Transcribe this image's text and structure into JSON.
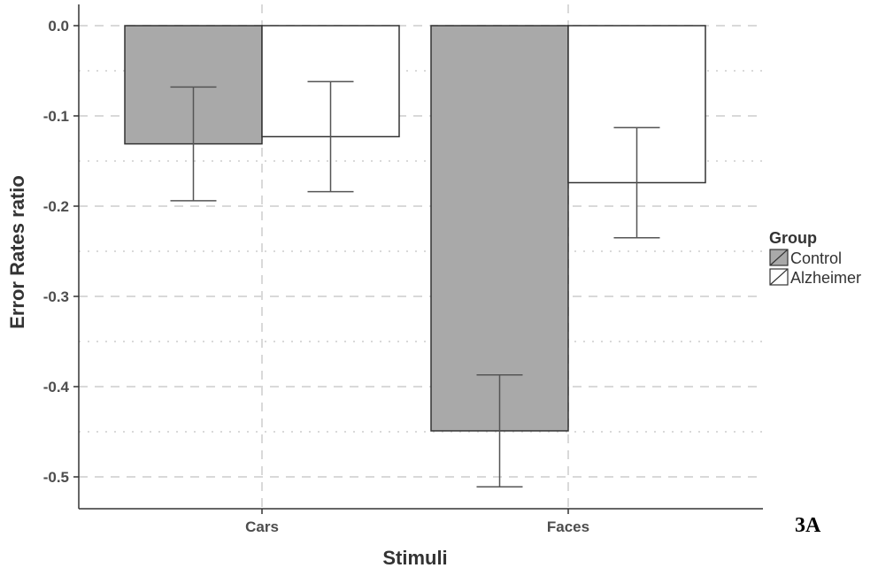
{
  "panel_label": "3A",
  "chart_data": {
    "type": "bar",
    "categories": [
      "Cars",
      "Faces"
    ],
    "series": [
      {
        "name": "Control",
        "values": [
          -0.131,
          -0.449
        ],
        "error": [
          0.063,
          0.062
        ],
        "color": "#a9a9a9"
      },
      {
        "name": "Alzheimer",
        "values": [
          -0.123,
          -0.174
        ],
        "error": [
          0.061,
          0.061
        ],
        "color": "#ffffff"
      }
    ],
    "xlabel": "Stimuli",
    "ylabel": "Error Rates ratio",
    "ylim": [
      -0.53,
      0.022
    ],
    "yticks": [
      0.0,
      -0.1,
      -0.2,
      -0.3,
      -0.4,
      -0.5
    ],
    "ytick_labels": [
      "0.0",
      "-0.1",
      "-0.2",
      "-0.3",
      "-0.4",
      "-0.5"
    ],
    "grid": true,
    "legend": {
      "title": "Group",
      "position": "right"
    }
  }
}
